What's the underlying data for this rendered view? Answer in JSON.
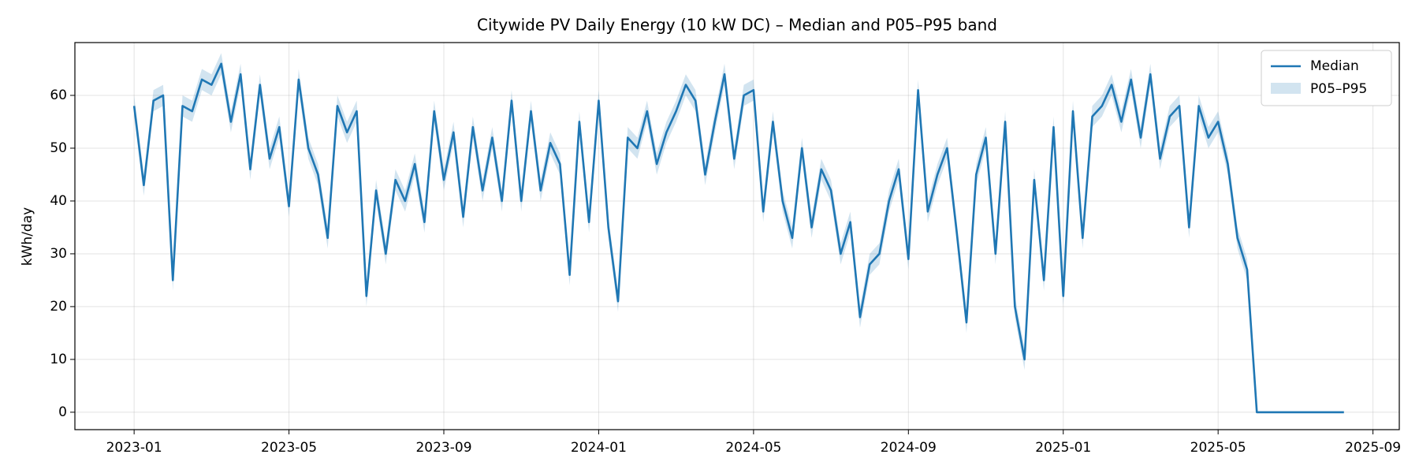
{
  "chart_data": {
    "type": "line",
    "title": "Citywide PV Daily Energy (10 kW DC) – Median and P05–P95 band",
    "ylabel": "kWh/day",
    "x": [
      0,
      0.25,
      0.5,
      0.75,
      1,
      1.25,
      1.5,
      1.75,
      2,
      2.25,
      2.5,
      2.75,
      3,
      3.25,
      3.5,
      3.75,
      4,
      4.25,
      4.5,
      4.75,
      5,
      5.25,
      5.5,
      5.75,
      6,
      6.25,
      6.5,
      6.75,
      7,
      7.25,
      7.5,
      7.75,
      8,
      8.25,
      8.5,
      8.75,
      9,
      9.25,
      9.5,
      9.75,
      10,
      10.25,
      10.5,
      10.75,
      11,
      11.25,
      11.5,
      11.75,
      12,
      12.25,
      12.5,
      12.75,
      13,
      13.25,
      13.5,
      13.75,
      14,
      14.25,
      14.5,
      14.75,
      15,
      15.25,
      15.5,
      15.75,
      16,
      16.25,
      16.5,
      16.75,
      17,
      17.25,
      17.5,
      17.75,
      18,
      18.25,
      18.5,
      18.75,
      19,
      19.25,
      19.5,
      19.75,
      20,
      20.25,
      20.5,
      20.75,
      21,
      21.25,
      21.5,
      21.75,
      22,
      22.25,
      22.5,
      22.75,
      23,
      23.25,
      23.5,
      23.75,
      24,
      24.25,
      24.5,
      24.75,
      25,
      25.25,
      25.5,
      25.75,
      26,
      26.25,
      26.5,
      26.75,
      27,
      27.25,
      27.5,
      27.75,
      28,
      28.25,
      28.5,
      28.75,
      29,
      29.25,
      29.5,
      29.75,
      30,
      30.25,
      30.5,
      30.75,
      31,
      31.25
    ],
    "series": [
      {
        "name": "Median",
        "color": "#1f77b4",
        "values": [
          58,
          43,
          59,
          60,
          25,
          58,
          57,
          63,
          62,
          66,
          55,
          64,
          46,
          62,
          48,
          54,
          39,
          63,
          50,
          45,
          33,
          58,
          53,
          57,
          22,
          42,
          30,
          44,
          40,
          47,
          36,
          57,
          44,
          53,
          37,
          54,
          42,
          52,
          40,
          59,
          40,
          57,
          42,
          51,
          47,
          26,
          55,
          36,
          59,
          35,
          21,
          52,
          50,
          57,
          47,
          53,
          57,
          62,
          59,
          45,
          55,
          64,
          48,
          60,
          61,
          38,
          55,
          40,
          33,
          50,
          35,
          46,
          42,
          30,
          36,
          18,
          28,
          30,
          40,
          46,
          29,
          61,
          38,
          45,
          50,
          34,
          17,
          45,
          52,
          30,
          55,
          20,
          10,
          44,
          25,
          54,
          22,
          57,
          33,
          56,
          58,
          62,
          55,
          63,
          52,
          64,
          48,
          56,
          58,
          35,
          58,
          52,
          55,
          47,
          33,
          27,
          0,
          0,
          0,
          0,
          0,
          0,
          0,
          0,
          0,
          0
        ]
      }
    ],
    "band": {
      "name": "P05–P95",
      "color": "#1f77b4",
      "lower": [
        56,
        41,
        57,
        58,
        23,
        56,
        55,
        61,
        60,
        64,
        53,
        62,
        44,
        60,
        46,
        52,
        37,
        61,
        48,
        43,
        31,
        56,
        51,
        55,
        20,
        40,
        28,
        42,
        38,
        45,
        34,
        55,
        42,
        51,
        35,
        52,
        40,
        50,
        38,
        57,
        38,
        55,
        40,
        49,
        45,
        24,
        53,
        34,
        57,
        33,
        19,
        50,
        48,
        55,
        45,
        51,
        55,
        60,
        57,
        43,
        53,
        62,
        46,
        58,
        59,
        36,
        53,
        38,
        31,
        48,
        33,
        44,
        40,
        28,
        34,
        16,
        26,
        28,
        38,
        44,
        27,
        59,
        36,
        43,
        48,
        32,
        15,
        43,
        50,
        28,
        53,
        18,
        8,
        42,
        23,
        52,
        20,
        55,
        31,
        54,
        56,
        60,
        53,
        61,
        50,
        62,
        46,
        54,
        56,
        33,
        56,
        50,
        53,
        45,
        31,
        25,
        0,
        0,
        0,
        0,
        0,
        0,
        0,
        0,
        0,
        0
      ],
      "upper": [
        60,
        45,
        61,
        62,
        27,
        60,
        59,
        65,
        64,
        68,
        57,
        66,
        48,
        64,
        50,
        56,
        41,
        65,
        52,
        47,
        35,
        60,
        55,
        59,
        24,
        44,
        32,
        46,
        42,
        49,
        38,
        59,
        46,
        55,
        39,
        56,
        44,
        54,
        42,
        61,
        42,
        59,
        44,
        53,
        49,
        28,
        57,
        38,
        61,
        37,
        23,
        54,
        52,
        59,
        49,
        55,
        59,
        64,
        61,
        47,
        57,
        66,
        50,
        62,
        63,
        40,
        57,
        42,
        35,
        52,
        37,
        48,
        44,
        32,
        38,
        20,
        30,
        32,
        42,
        48,
        31,
        63,
        40,
        47,
        52,
        36,
        19,
        47,
        54,
        32,
        57,
        22,
        12,
        46,
        27,
        56,
        24,
        59,
        35,
        58,
        60,
        64,
        57,
        65,
        54,
        66,
        50,
        58,
        60,
        37,
        60,
        54,
        57,
        49,
        35,
        29,
        0,
        0,
        0,
        0,
        0,
        0,
        0,
        0,
        0,
        0
      ]
    },
    "xlim": [
      -1.53,
      32.68
    ],
    "xticks": [
      {
        "value": 0,
        "label": "2023-01"
      },
      {
        "value": 4,
        "label": "2023-05"
      },
      {
        "value": 8,
        "label": "2023-09"
      },
      {
        "value": 12,
        "label": "2024-01"
      },
      {
        "value": 16,
        "label": "2024-05"
      },
      {
        "value": 20,
        "label": "2024-09"
      },
      {
        "value": 24,
        "label": "2025-01"
      },
      {
        "value": 28,
        "label": "2025-05"
      },
      {
        "value": 32,
        "label": "2025-09"
      }
    ],
    "ylim": [
      -3.3,
      70
    ],
    "yticks": [
      0,
      10,
      20,
      30,
      40,
      50,
      60
    ],
    "grid": true,
    "legend": "upper right"
  }
}
